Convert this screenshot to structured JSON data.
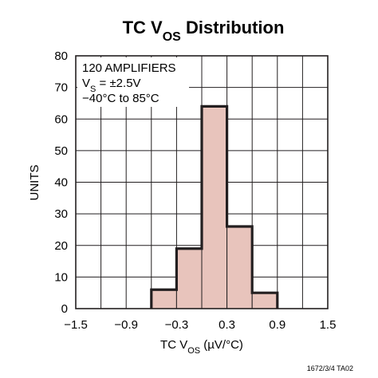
{
  "chart_data": {
    "type": "bar",
    "title": "TC V",
    "title_sub": "OS",
    "title_rest": " Distribution",
    "xlabel": "TC V",
    "xlabel_sub": "OS",
    "xlabel_rest": " (µV/°C)",
    "ylabel": "UNITS",
    "xlim": [
      -1.5,
      1.5
    ],
    "ylim": [
      0,
      80
    ],
    "x_ticks": [
      -1.5,
      -0.9,
      -0.3,
      0.3,
      0.9,
      1.5
    ],
    "x_tick_labels": [
      "−1.5",
      "−0.9",
      "−0.3",
      "0.3",
      "0.9",
      "1.5"
    ],
    "y_ticks": [
      0,
      10,
      20,
      30,
      40,
      50,
      60,
      70,
      80
    ],
    "y_tick_labels": [
      "0",
      "10",
      "20",
      "30",
      "40",
      "50",
      "60",
      "70",
      "80"
    ],
    "grid": true,
    "x_grid_step": 0.3,
    "y_grid_step": 10,
    "bins": [
      {
        "x0": -0.6,
        "x1": -0.3,
        "value": 6
      },
      {
        "x0": -0.3,
        "x1": 0.0,
        "value": 19
      },
      {
        "x0": 0.0,
        "x1": 0.3,
        "value": 64
      },
      {
        "x0": 0.3,
        "x1": 0.6,
        "value": 26
      },
      {
        "x0": 0.6,
        "x1": 0.9,
        "value": 5
      }
    ],
    "annotations": {
      "line1": "120 AMPLIFIERS",
      "line2_main": "V",
      "line2_sub": "S",
      "line2_rest": " = ±2.5V",
      "line3": "−40°C to 85°C"
    },
    "figure_code": "1672/3/4 TA02",
    "colors": {
      "bar_fill": "#e8c4bc",
      "outline": "#231f20",
      "grid": "#231f20",
      "background": "#ffffff"
    }
  }
}
